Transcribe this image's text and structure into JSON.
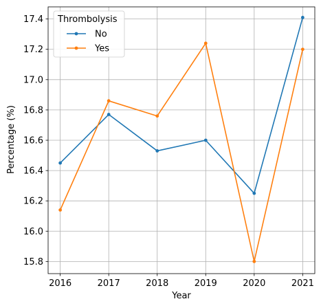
{
  "chart_data": {
    "type": "line",
    "title": "",
    "xlabel": "Year",
    "ylabel": "Percentage (%)",
    "x": [
      2016,
      2017,
      2018,
      2019,
      2020,
      2021
    ],
    "xlim": [
      2015.75,
      2021.25
    ],
    "ylim": [
      15.72,
      17.48
    ],
    "x_ticks": [
      "2016",
      "2017",
      "2018",
      "2019",
      "2020",
      "2021"
    ],
    "y_ticks": [
      "15.8",
      "16.0",
      "16.2",
      "16.4",
      "16.6",
      "16.8",
      "17.0",
      "17.2",
      "17.4"
    ],
    "grid": true,
    "legend": {
      "title": "Thrombolysis",
      "position": "top-left"
    },
    "series": [
      {
        "name": "No",
        "color": "#1f77b4",
        "values": [
          16.45,
          16.77,
          16.53,
          16.6,
          16.25,
          17.41
        ]
      },
      {
        "name": "Yes",
        "color": "#ff7f0e",
        "values": [
          16.14,
          16.86,
          16.76,
          17.24,
          15.8,
          17.2
        ]
      }
    ]
  }
}
